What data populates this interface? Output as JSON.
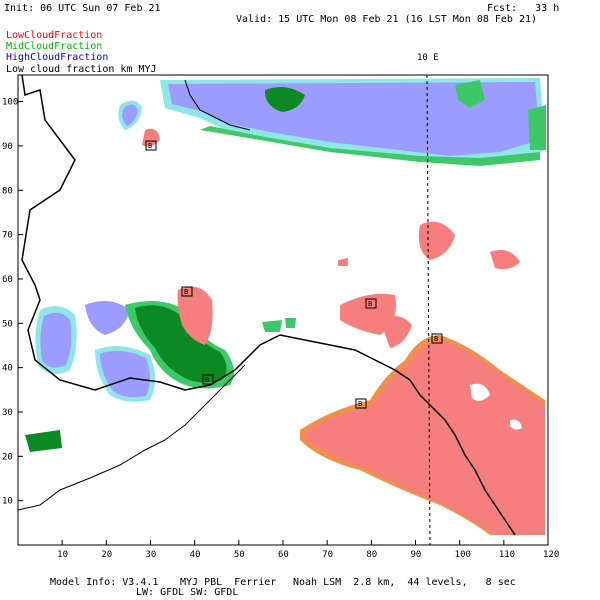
{
  "header": {
    "init": "Init: 06 UTC Sun 07 Feb 21",
    "fcst": "Fcst:   33 h",
    "valid": "Valid: 15 UTC Mon 08 Feb 21 (16 LST Mon 08 Feb 21)"
  },
  "legend": {
    "items": [
      {
        "label": "LowCloudFraction",
        "color": "#ff0000"
      },
      {
        "label": "MidCloudFraction",
        "color": "#00b400"
      },
      {
        "label": "HighCloudFraction",
        "color": "#0000ff"
      }
    ],
    "overlay_text": "Low cloud fraction       km MYJ"
  },
  "colors": {
    "low_cloud": "#f47f7c",
    "low_cloud_edge": "#f0914a",
    "mid_cloud": "#0b8a23",
    "mid_cloud_light": "#3fc86a",
    "high_cloud": "#9c9cff",
    "high_cloud_edge": "#8fe6e6",
    "coast": "#000000",
    "dashed_line": "#000000"
  },
  "map": {
    "meridian_label": "10 E",
    "x_ticks": [
      "10",
      "20",
      "30",
      "40",
      "50",
      "60",
      "70",
      "80",
      "90",
      "100",
      "110",
      "120"
    ],
    "y_ticks": [
      "100",
      "90",
      "80",
      "70",
      "60",
      "50",
      "40",
      "30",
      "20",
      "10"
    ],
    "station_markers": [
      "B",
      "B",
      "B",
      "B",
      "B",
      "B"
    ]
  },
  "footer": {
    "model": "Model Info: V3.4.1",
    "pbl": "MYJ PBL  Ferrier",
    "lsm": "Noah LSM  2.8 km,  44 levels,   8 sec",
    "lw": "LW: GFDL SW: GFDL"
  }
}
